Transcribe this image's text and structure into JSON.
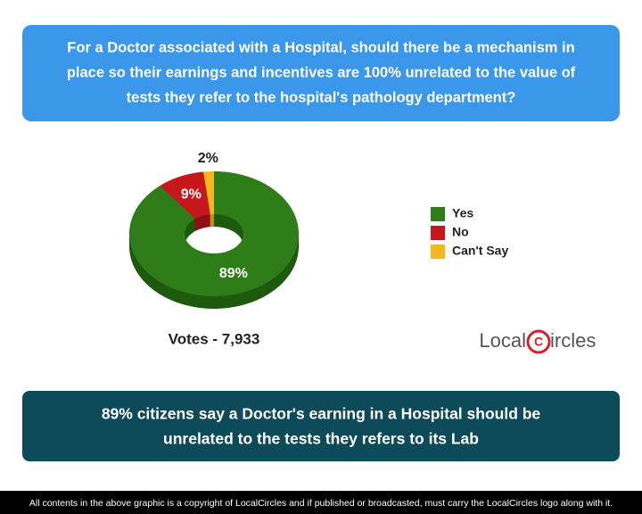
{
  "chart_data": {
    "type": "donut",
    "title_lines": [
      "For a Doctor associated with a Hospital, should there be a mechanism in",
      "place so their earnings and incentives are 100% unrelated to the value of",
      "tests they refer to the hospital's pathology department?"
    ],
    "categories": [
      "Yes",
      "No",
      "Can't Say"
    ],
    "values": [
      89,
      9,
      2
    ],
    "value_labels": [
      "89%",
      "9%",
      "2%"
    ],
    "colors": [
      "#2e7d18",
      "#c8161d",
      "#f4b81c"
    ],
    "side_colors": [
      "#1e5a0e",
      "#8e0f14",
      "#c28f10"
    ],
    "votes": "Votes - 7,933",
    "logo_parts": [
      "Local",
      "C",
      "ircles"
    ],
    "summary_lines": [
      "89% citizens say a Doctor's earning in a Hospital should be",
      "unrelated to the tests they refers to its Lab"
    ],
    "footer": "All contents in the above graphic is a copyright of LocalCircles and if published or broadcasted, must carry the LocalCircles logo along with it."
  }
}
